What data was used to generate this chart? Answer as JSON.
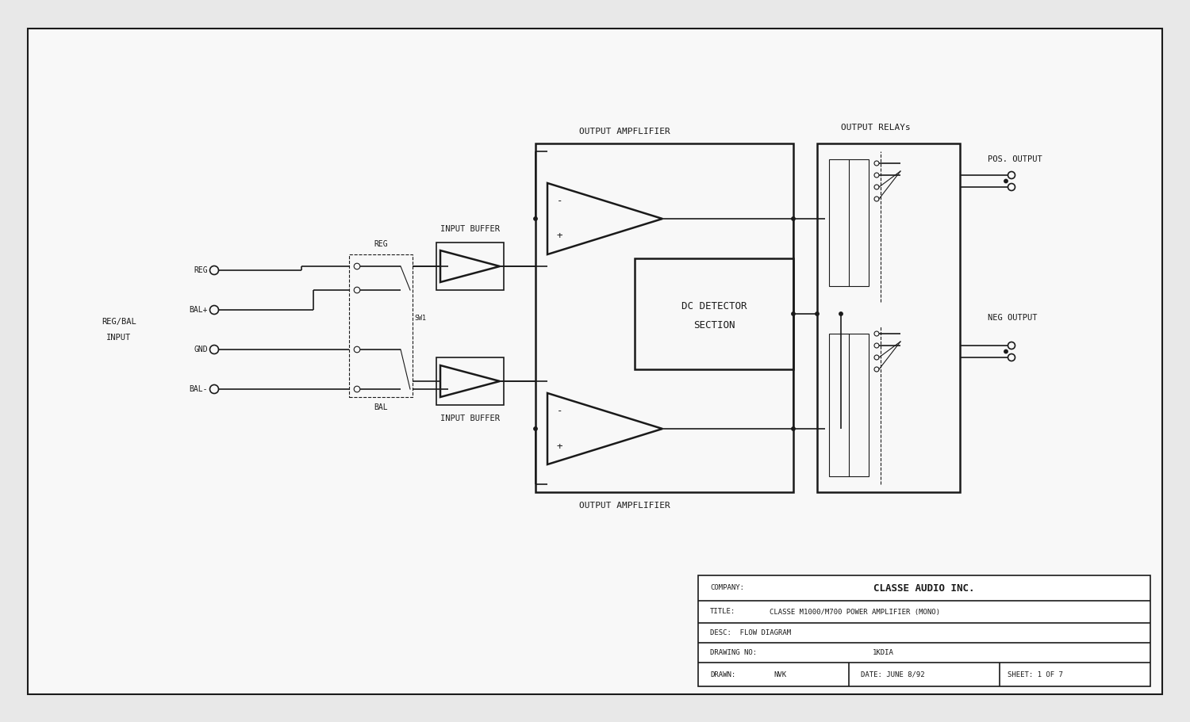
{
  "bg_color": "#e8e8e8",
  "page_bg": "#f8f8f8",
  "line_color": "#1a1a1a",
  "company": "CLASSE AUDIO INC.",
  "drawing_title": "CLASSE M1000/M700 POWER AMPLIFIER (MONO)",
  "desc": "FLOW DIAGRAM",
  "drawing_no": "1KDIA",
  "drawn": "NVK",
  "date": "DATE: JUNE 8/92",
  "sheet": "SHEET: 1 OF 7",
  "inputs": [
    "REG",
    "BAL+",
    "GND",
    "BAL-"
  ],
  "input_group_label_line1": "REG/BAL",
  "input_group_label_line2": "INPUT",
  "buffer_label": "INPUT BUFFER",
  "output_amp_label": "OUTPUT AMPFLIFIER",
  "dc_detector_line1": "DC DETECTOR",
  "dc_detector_line2": "SECTION",
  "relay_label": "OUTPUT RELAYs",
  "pos_output_label": "POS. OUTPUT",
  "neg_output_label": "NEG OUTPUT",
  "reg_label": "REG",
  "bal_label": "BAL",
  "sw1_label": "SW1"
}
